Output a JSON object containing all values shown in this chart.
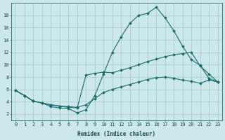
{
  "xlabel": "Humidex (Indice chaleur)",
  "bg_color": "#cce8ea",
  "grid_color": "#a0c8cc",
  "line_color": "#1a6b6b",
  "xlim": [
    -0.5,
    23.5
  ],
  "ylim": [
    1.0,
    20.0
  ],
  "yticks": [
    2,
    4,
    6,
    8,
    10,
    12,
    14,
    16,
    18
  ],
  "xticks": [
    0,
    1,
    2,
    3,
    4,
    5,
    6,
    7,
    8,
    9,
    10,
    11,
    12,
    13,
    14,
    15,
    16,
    17,
    18,
    19,
    20,
    21,
    22,
    23
  ],
  "curve1_x": [
    0,
    1,
    2,
    3,
    4,
    5,
    6,
    7,
    8,
    9,
    10,
    11,
    12,
    13,
    14,
    15,
    16,
    17,
    18,
    19,
    20,
    21,
    22,
    23
  ],
  "curve1_y": [
    5.8,
    5.0,
    4.1,
    3.8,
    3.2,
    3.0,
    2.9,
    2.2,
    2.7,
    5.0,
    8.5,
    12.0,
    14.5,
    16.7,
    18.0,
    18.3,
    19.3,
    17.6,
    15.5,
    13.0,
    10.8,
    9.9,
    7.8,
    7.2
  ],
  "curve2_x": [
    0,
    1,
    2,
    3,
    4,
    5,
    6,
    7,
    8,
    9,
    10,
    11,
    12,
    13,
    14,
    15,
    16,
    17,
    18,
    19,
    20,
    21,
    22,
    23
  ],
  "curve2_y": [
    5.8,
    5.0,
    4.1,
    3.8,
    3.5,
    3.3,
    3.1,
    3.0,
    8.3,
    8.6,
    8.8,
    8.7,
    9.1,
    9.5,
    10.0,
    10.5,
    10.9,
    11.3,
    11.6,
    11.8,
    12.0,
    9.8,
    8.5,
    7.2
  ],
  "curve3_x": [
    0,
    1,
    2,
    3,
    4,
    5,
    6,
    7,
    8,
    9,
    10,
    11,
    12,
    13,
    14,
    15,
    16,
    17,
    18,
    19,
    20,
    21,
    22,
    23
  ],
  "curve3_y": [
    5.8,
    5.0,
    4.1,
    3.8,
    3.5,
    3.3,
    3.2,
    3.1,
    3.5,
    4.5,
    5.5,
    6.0,
    6.4,
    6.8,
    7.2,
    7.6,
    7.9,
    8.0,
    7.8,
    7.5,
    7.3,
    7.0,
    7.5,
    7.2
  ],
  "xlabel_fontsize": 5.5,
  "tick_fontsize": 5.0,
  "marker_size": 2.0,
  "line_width": 0.8
}
